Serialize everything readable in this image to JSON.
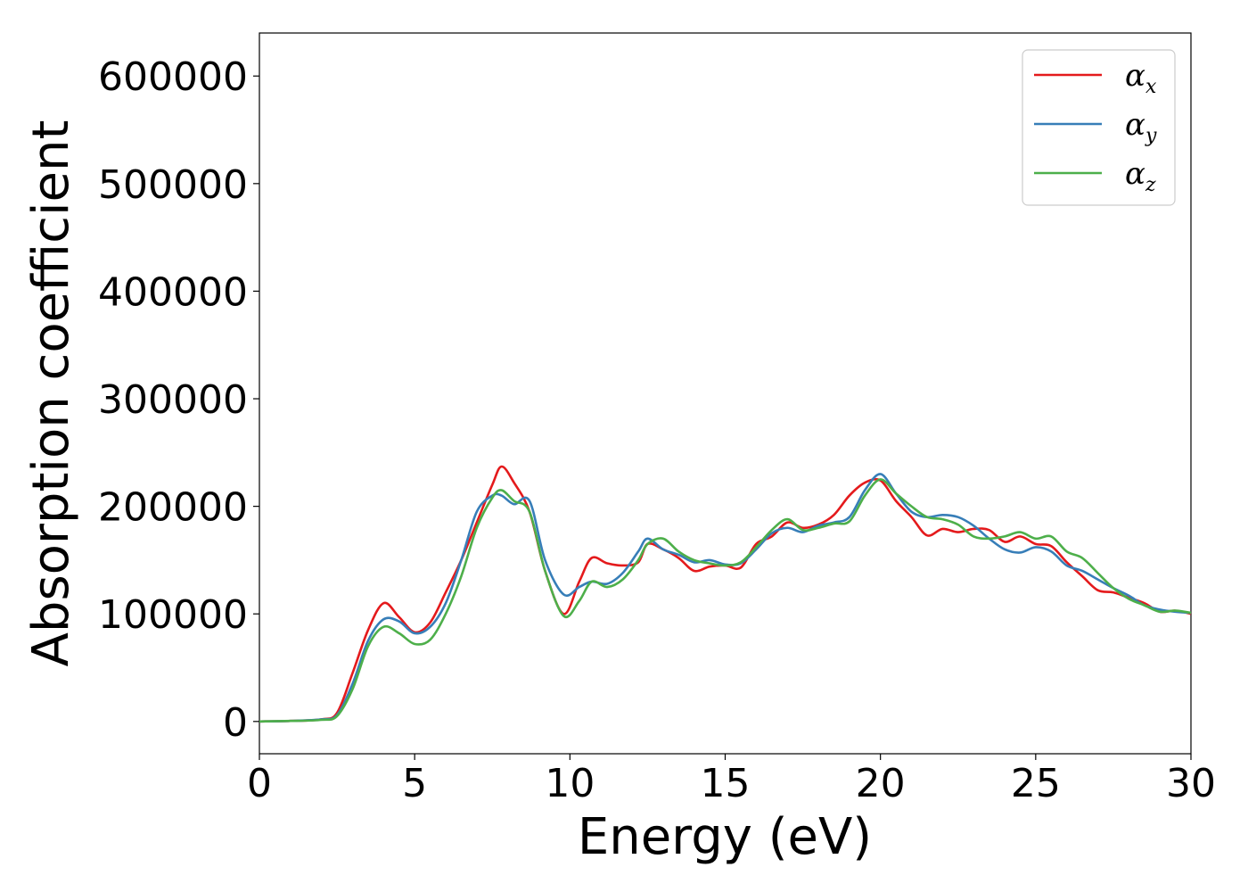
{
  "chart_data": {
    "type": "line",
    "title": "",
    "xlabel": "Energy (eV)",
    "ylabel": "Absorption coefficient",
    "xlim": [
      0,
      30
    ],
    "ylim": [
      -30000,
      640000
    ],
    "xticks": [
      0,
      5,
      10,
      15,
      20,
      25,
      30
    ],
    "yticks": [
      0,
      100000,
      200000,
      300000,
      400000,
      500000,
      600000
    ],
    "xtick_labels": [
      "0",
      "5",
      "10",
      "15",
      "20",
      "25",
      "30"
    ],
    "ytick_labels": [
      "0",
      "100000",
      "200000",
      "300000",
      "400000",
      "500000",
      "600000"
    ],
    "grid": false,
    "legend_position": "top-right",
    "series": [
      {
        "name": "αx",
        "symbol": "α",
        "subscript": "x",
        "color": "#e41a1c",
        "x": [
          0,
          1,
          2,
          2.5,
          3,
          3.5,
          4,
          4.5,
          5,
          5.5,
          6,
          6.5,
          7,
          7.5,
          7.8,
          8.2,
          8.7,
          9.2,
          9.8,
          10.3,
          10.7,
          11.2,
          11.7,
          12.2,
          12.5,
          13,
          13.5,
          14,
          14.5,
          15,
          15.5,
          16,
          16.5,
          17,
          17.5,
          18,
          18.5,
          19,
          19.5,
          20,
          20.5,
          21,
          21.5,
          22,
          22.5,
          23,
          23.5,
          24,
          24.5,
          25,
          25.5,
          26,
          26.5,
          27,
          27.5,
          28,
          28.5,
          29,
          29.5,
          30
        ],
        "y": [
          0,
          500,
          2000,
          8000,
          45000,
          85000,
          110000,
          97000,
          83000,
          92000,
          120000,
          150000,
          185000,
          220000,
          237000,
          222000,
          195000,
          140000,
          100000,
          130000,
          152000,
          147000,
          145000,
          148000,
          165000,
          160000,
          152000,
          140000,
          144000,
          145000,
          143000,
          165000,
          172000,
          185000,
          180000,
          183000,
          192000,
          210000,
          222000,
          224000,
          205000,
          190000,
          173000,
          179000,
          176000,
          179000,
          178000,
          167000,
          172000,
          165000,
          163000,
          148000,
          135000,
          122000,
          120000,
          115000,
          110000,
          102000,
          103000,
          100000
        ]
      },
      {
        "name": "αy",
        "symbol": "α",
        "subscript": "y",
        "color": "#377eb8",
        "x": [
          0,
          1,
          2,
          2.5,
          3,
          3.5,
          4,
          4.5,
          5,
          5.5,
          6,
          6.5,
          7,
          7.5,
          7.8,
          8.2,
          8.7,
          9.2,
          9.8,
          10.3,
          10.7,
          11.2,
          11.7,
          12.2,
          12.5,
          13,
          13.5,
          14,
          14.5,
          15,
          15.5,
          16,
          16.5,
          17,
          17.5,
          18,
          18.5,
          19,
          19.5,
          20,
          20.5,
          21,
          21.5,
          22,
          22.5,
          23,
          23.5,
          24,
          24.5,
          25,
          25.5,
          26,
          26.5,
          27,
          27.5,
          28,
          28.5,
          29,
          29.5,
          30
        ],
        "y": [
          0,
          500,
          2000,
          6000,
          35000,
          75000,
          95000,
          93000,
          82000,
          88000,
          110000,
          150000,
          195000,
          210000,
          210000,
          202000,
          205000,
          150000,
          118000,
          125000,
          130000,
          128000,
          138000,
          158000,
          170000,
          160000,
          155000,
          148000,
          150000,
          146000,
          147000,
          160000,
          175000,
          180000,
          176000,
          182000,
          185000,
          190000,
          215000,
          230000,
          212000,
          195000,
          190000,
          192000,
          190000,
          182000,
          170000,
          160000,
          157000,
          162000,
          158000,
          145000,
          140000,
          132000,
          124000,
          117000,
          108000,
          104000,
          102000,
          101000
        ]
      },
      {
        "name": "αz",
        "symbol": "α",
        "subscript": "z",
        "color": "#4daf4a",
        "x": [
          0,
          1,
          2,
          2.5,
          3,
          3.5,
          4,
          4.5,
          5,
          5.5,
          6,
          6.5,
          7,
          7.5,
          7.8,
          8.2,
          8.7,
          9.2,
          9.8,
          10.3,
          10.7,
          11.2,
          11.7,
          12.2,
          12.5,
          13,
          13.5,
          14,
          14.5,
          15,
          15.5,
          16,
          16.5,
          17,
          17.5,
          18,
          18.5,
          19,
          19.5,
          20,
          20.5,
          21,
          21.5,
          22,
          22.5,
          23,
          23.5,
          24,
          24.5,
          25,
          25.5,
          26,
          26.5,
          27,
          27.5,
          28,
          28.5,
          29,
          29.5,
          30
        ],
        "y": [
          0,
          500,
          1500,
          5000,
          30000,
          70000,
          88000,
          82000,
          72000,
          76000,
          100000,
          135000,
          180000,
          208000,
          215000,
          205000,
          195000,
          140000,
          98000,
          112000,
          130000,
          125000,
          132000,
          150000,
          165000,
          170000,
          158000,
          150000,
          147000,
          145000,
          148000,
          162000,
          178000,
          188000,
          178000,
          180000,
          184000,
          186000,
          210000,
          225000,
          212000,
          200000,
          190000,
          188000,
          183000,
          172000,
          170000,
          172000,
          176000,
          170000,
          172000,
          158000,
          152000,
          138000,
          124000,
          114000,
          108000,
          102000,
          103000,
          101000
        ]
      }
    ]
  }
}
